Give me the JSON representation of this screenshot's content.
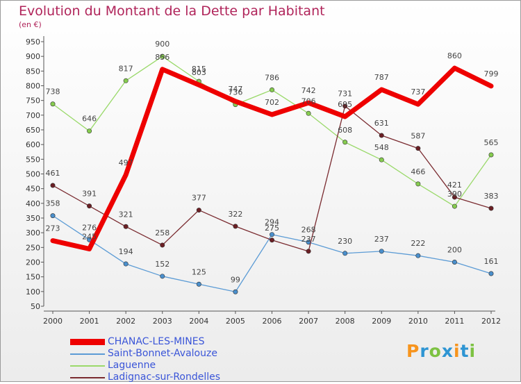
{
  "title": "Evolution du Montant de la Dette par Habitant",
  "subtitle": "(en €)",
  "logo": "Proxiti",
  "colors": {
    "title": "#b0245a",
    "legend_text": "#3a55d8"
  },
  "chart_data": {
    "type": "line",
    "x": [
      "2000",
      "2001",
      "2002",
      "2003",
      "2004",
      "2005",
      "2006",
      "2007",
      "2008",
      "2009",
      "2010",
      "2011",
      "2012"
    ],
    "yticks": [
      50,
      100,
      150,
      200,
      250,
      300,
      350,
      400,
      450,
      500,
      550,
      600,
      650,
      700,
      750,
      800,
      850,
      900,
      950
    ],
    "ylim": [
      50,
      950
    ],
    "grid": false,
    "legend_position": "bottom-left",
    "series": [
      {
        "name": "Saint-Bonnet-Avalouze",
        "color": "#5b9bd5",
        "width": 1.3,
        "marker": "#4a8fcc",
        "values": [
          358,
          276,
          194,
          152,
          125,
          99,
          294,
          268,
          230,
          237,
          222,
          200,
          161
        ],
        "labels": [
          "358",
          "276",
          "194",
          "152",
          "125",
          "99",
          "294",
          "268",
          "230",
          "237",
          "222",
          "200",
          "161"
        ]
      },
      {
        "name": "Laguenne",
        "color": "#9ad96a",
        "width": 1.3,
        "marker": "#86cc4f",
        "values": [
          738,
          646,
          817,
          900,
          815,
          736,
          786,
          706,
          608,
          548,
          466,
          390,
          565
        ],
        "labels": [
          "738",
          "646",
          "817",
          "900",
          "815",
          "736",
          "786",
          "706",
          "608",
          "548",
          "466",
          "390",
          "565"
        ]
      },
      {
        "name": "Ladignac-sur-Rondelles",
        "color": "#7a2b30",
        "width": 1.3,
        "marker": "#6b1f24",
        "values": [
          461,
          391,
          321,
          258,
          377,
          322,
          275,
          237,
          731,
          631,
          587,
          421,
          383
        ],
        "labels": [
          "461",
          "391",
          "321",
          "258",
          "377",
          "322",
          "275",
          "237",
          "731",
          "631",
          "587",
          "421",
          "383"
        ]
      },
      {
        "name": "CHANAC-LES-MINES",
        "color": "#ee0000",
        "width": 7,
        "marker": "#ee0000",
        "values": [
          273,
          245,
          497,
          856,
          803,
          747,
          702,
          742,
          695,
          787,
          737,
          860,
          799
        ],
        "labels": [
          "273",
          "245",
          "497",
          "856",
          "803",
          "747",
          "702",
          "742",
          "695",
          "787",
          "737",
          "860",
          "799"
        ]
      }
    ]
  }
}
